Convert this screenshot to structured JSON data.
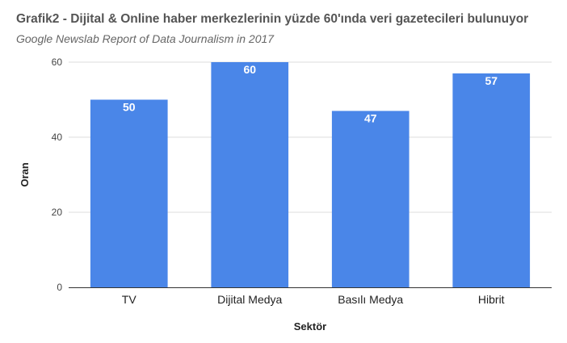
{
  "chart_data": {
    "type": "bar",
    "title": "Grafik2 - Dijital & Online haber merkezlerinin yüzde 60'ında veri gazetecileri bulunuyor",
    "subtitle": "Google Newslab Report of Data Journalism in 2017",
    "xlabel": "Sektör",
    "ylabel": "Oran",
    "categories": [
      "TV",
      "Dijital Medya",
      "Basılı Medya",
      "Hibrit"
    ],
    "values": [
      50,
      60,
      47,
      57
    ],
    "ylim": [
      0,
      60
    ],
    "yticks": [
      "0",
      "20",
      "40",
      "60"
    ],
    "grid": true,
    "legend": "none",
    "bar_color": "#4a86e8"
  }
}
